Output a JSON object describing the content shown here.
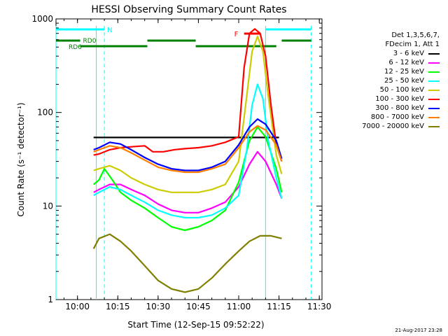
{
  "chart_data": {
    "type": "line",
    "title": "HESSI Observing Summary Count Rates",
    "xlabel": "Start Time (12-Sep-15 09:52:22)",
    "ylabel": "Count Rate (s⁻¹ detector⁻¹)",
    "y_scale": "log",
    "ylim": [
      1,
      1000
    ],
    "xlim": [
      "09:52",
      "11:31"
    ],
    "x_ticks": [
      "10:00",
      "10:15",
      "10:30",
      "10:45",
      "11:00",
      "11:15",
      "11:30"
    ],
    "y_ticks": [
      "1",
      "10",
      "100",
      "1000"
    ],
    "legend_header": [
      "Det 1,3,5,6,7,",
      "FDecim 1, Att 1"
    ],
    "legend_position": "right",
    "series": [
      {
        "name": "3 - 6 keV",
        "color": "#000000",
        "x": [
          "10:06",
          "10:15",
          "10:30",
          "10:45",
          "10:55",
          "11:00",
          "11:04",
          "11:07",
          "11:10",
          "11:15"
        ],
        "values": [
          54,
          54,
          54,
          54,
          54,
          54,
          54,
          54,
          54,
          54
        ]
      },
      {
        "name": "6 - 12 keV",
        "color": "#ff00ff",
        "x": [
          "10:06",
          "10:08",
          "10:12",
          "10:16",
          "10:20",
          "10:25",
          "10:30",
          "10:35",
          "10:40",
          "10:45",
          "10:50",
          "10:55",
          "11:00",
          "11:04",
          "11:07",
          "11:10",
          "11:14",
          "11:16"
        ],
        "values": [
          14,
          15,
          17,
          17,
          15,
          13,
          10.5,
          9,
          8.5,
          8.5,
          9.5,
          11,
          16,
          28,
          38,
          30,
          17,
          12
        ]
      },
      {
        "name": "12 - 25 keV",
        "color": "#00ff00",
        "x": [
          "10:06",
          "10:08",
          "10:10",
          "10:13",
          "10:16",
          "10:20",
          "10:25",
          "10:30",
          "10:35",
          "10:40",
          "10:45",
          "10:50",
          "10:55",
          "11:00",
          "11:04",
          "11:07",
          "11:10",
          "11:14",
          "11:16"
        ],
        "values": [
          17,
          19,
          25,
          19,
          14,
          11.5,
          9.5,
          7.5,
          6,
          5.5,
          6,
          7,
          9,
          18,
          50,
          70,
          55,
          25,
          14
        ]
      },
      {
        "name": "25 - 50 keV",
        "color": "#00ffff",
        "x": [
          "10:06",
          "10:08",
          "10:12",
          "10:16",
          "10:20",
          "10:25",
          "10:30",
          "10:35",
          "10:40",
          "10:45",
          "10:50",
          "10:55",
          "11:00",
          "11:03",
          "11:05",
          "11:07",
          "11:09",
          "11:11",
          "11:14",
          "11:16"
        ],
        "values": [
          13,
          14,
          16,
          15,
          13,
          11,
          9,
          8,
          7.5,
          7.5,
          8,
          9.5,
          13,
          40,
          120,
          200,
          140,
          50,
          20,
          12
        ]
      },
      {
        "name": "50 - 100 keV",
        "color": "#cccc00",
        "x": [
          "10:06",
          "10:08",
          "10:12",
          "10:16",
          "10:20",
          "10:25",
          "10:30",
          "10:35",
          "10:40",
          "10:45",
          "10:50",
          "10:55",
          "11:00",
          "11:03",
          "11:05",
          "11:07",
          "11:09",
          "11:11",
          "11:14",
          "11:16"
        ],
        "values": [
          24,
          25,
          27,
          24,
          20,
          17,
          15,
          14,
          14,
          14,
          15,
          17,
          30,
          150,
          450,
          650,
          450,
          150,
          35,
          22
        ]
      },
      {
        "name": "100 - 300 keV",
        "color": "#ff0000",
        "x": [
          "10:06",
          "10:08",
          "10:12",
          "10:16",
          "10:20",
          "10:25",
          "10:28",
          "10:32",
          "10:36",
          "10:40",
          "10:45",
          "10:50",
          "10:55",
          "11:00",
          "11:02",
          "11:04",
          "11:06",
          "11:08",
          "11:10",
          "11:12",
          "11:14",
          "11:16"
        ],
        "values": [
          35,
          36,
          40,
          42,
          43,
          44,
          38,
          38,
          40,
          41,
          42,
          44,
          48,
          55,
          300,
          700,
          780,
          700,
          400,
          120,
          45,
          30
        ]
      },
      {
        "name": "300 - 800 keV",
        "color": "#0000ff",
        "x": [
          "10:06",
          "10:08",
          "10:12",
          "10:16",
          "10:20",
          "10:25",
          "10:30",
          "10:35",
          "10:40",
          "10:45",
          "10:50",
          "10:55",
          "11:00",
          "11:04",
          "11:07",
          "11:10",
          "11:14",
          "11:16"
        ],
        "values": [
          40,
          42,
          48,
          46,
          40,
          33,
          28,
          25,
          24,
          24,
          26,
          30,
          45,
          70,
          85,
          75,
          50,
          32
        ]
      },
      {
        "name": "800 - 7000 keV",
        "color": "#ff8000",
        "x": [
          "10:06",
          "10:08",
          "10:12",
          "10:16",
          "10:20",
          "10:25",
          "10:30",
          "10:35",
          "10:40",
          "10:45",
          "10:50",
          "10:55",
          "11:00",
          "11:04",
          "11:07",
          "11:10",
          "11:14",
          "11:16"
        ],
        "values": [
          38,
          40,
          44,
          42,
          37,
          31,
          26,
          24,
          23,
          23,
          25,
          28,
          42,
          62,
          72,
          65,
          45,
          30
        ]
      },
      {
        "name": "7000 - 20000 keV",
        "color": "#808000",
        "x": [
          "10:06",
          "10:08",
          "10:12",
          "10:16",
          "10:20",
          "10:25",
          "10:30",
          "10:35",
          "10:40",
          "10:45",
          "10:50",
          "10:55",
          "11:00",
          "11:04",
          "11:08",
          "11:12",
          "11:16"
        ],
        "values": [
          3.5,
          4.5,
          5,
          4.2,
          3.3,
          2.3,
          1.6,
          1.3,
          1.2,
          1.3,
          1.7,
          2.4,
          3.3,
          4.2,
          4.8,
          4.8,
          4.5
        ]
      }
    ],
    "annotations": {
      "night_label": "N",
      "flare_label": "F",
      "rd0_label": "RD0",
      "rd6_label": "RD6"
    },
    "night_intervals": [
      [
        "09:52",
        "10:10"
      ],
      [
        "11:10",
        "11:27"
      ]
    ],
    "flare_interval": [
      "11:02",
      "11:08"
    ],
    "rd0_intervals": [
      [
        "09:52",
        "10:01"
      ],
      [
        "10:26",
        "10:44"
      ],
      [
        "11:16",
        "11:27"
      ]
    ],
    "rd6_intervals": [
      [
        "10:01",
        "10:26"
      ],
      [
        "10:44",
        "11:14"
      ]
    ],
    "night_vlines": [
      "09:52",
      "10:07",
      "10:10",
      "11:10",
      "11:27"
    ],
    "colors": {
      "night": "#00ffff",
      "flare": "#ff0000",
      "rd": "#008000",
      "axes": "#000000"
    }
  },
  "footer_timestamp": "21-Aug-2017 23:28"
}
